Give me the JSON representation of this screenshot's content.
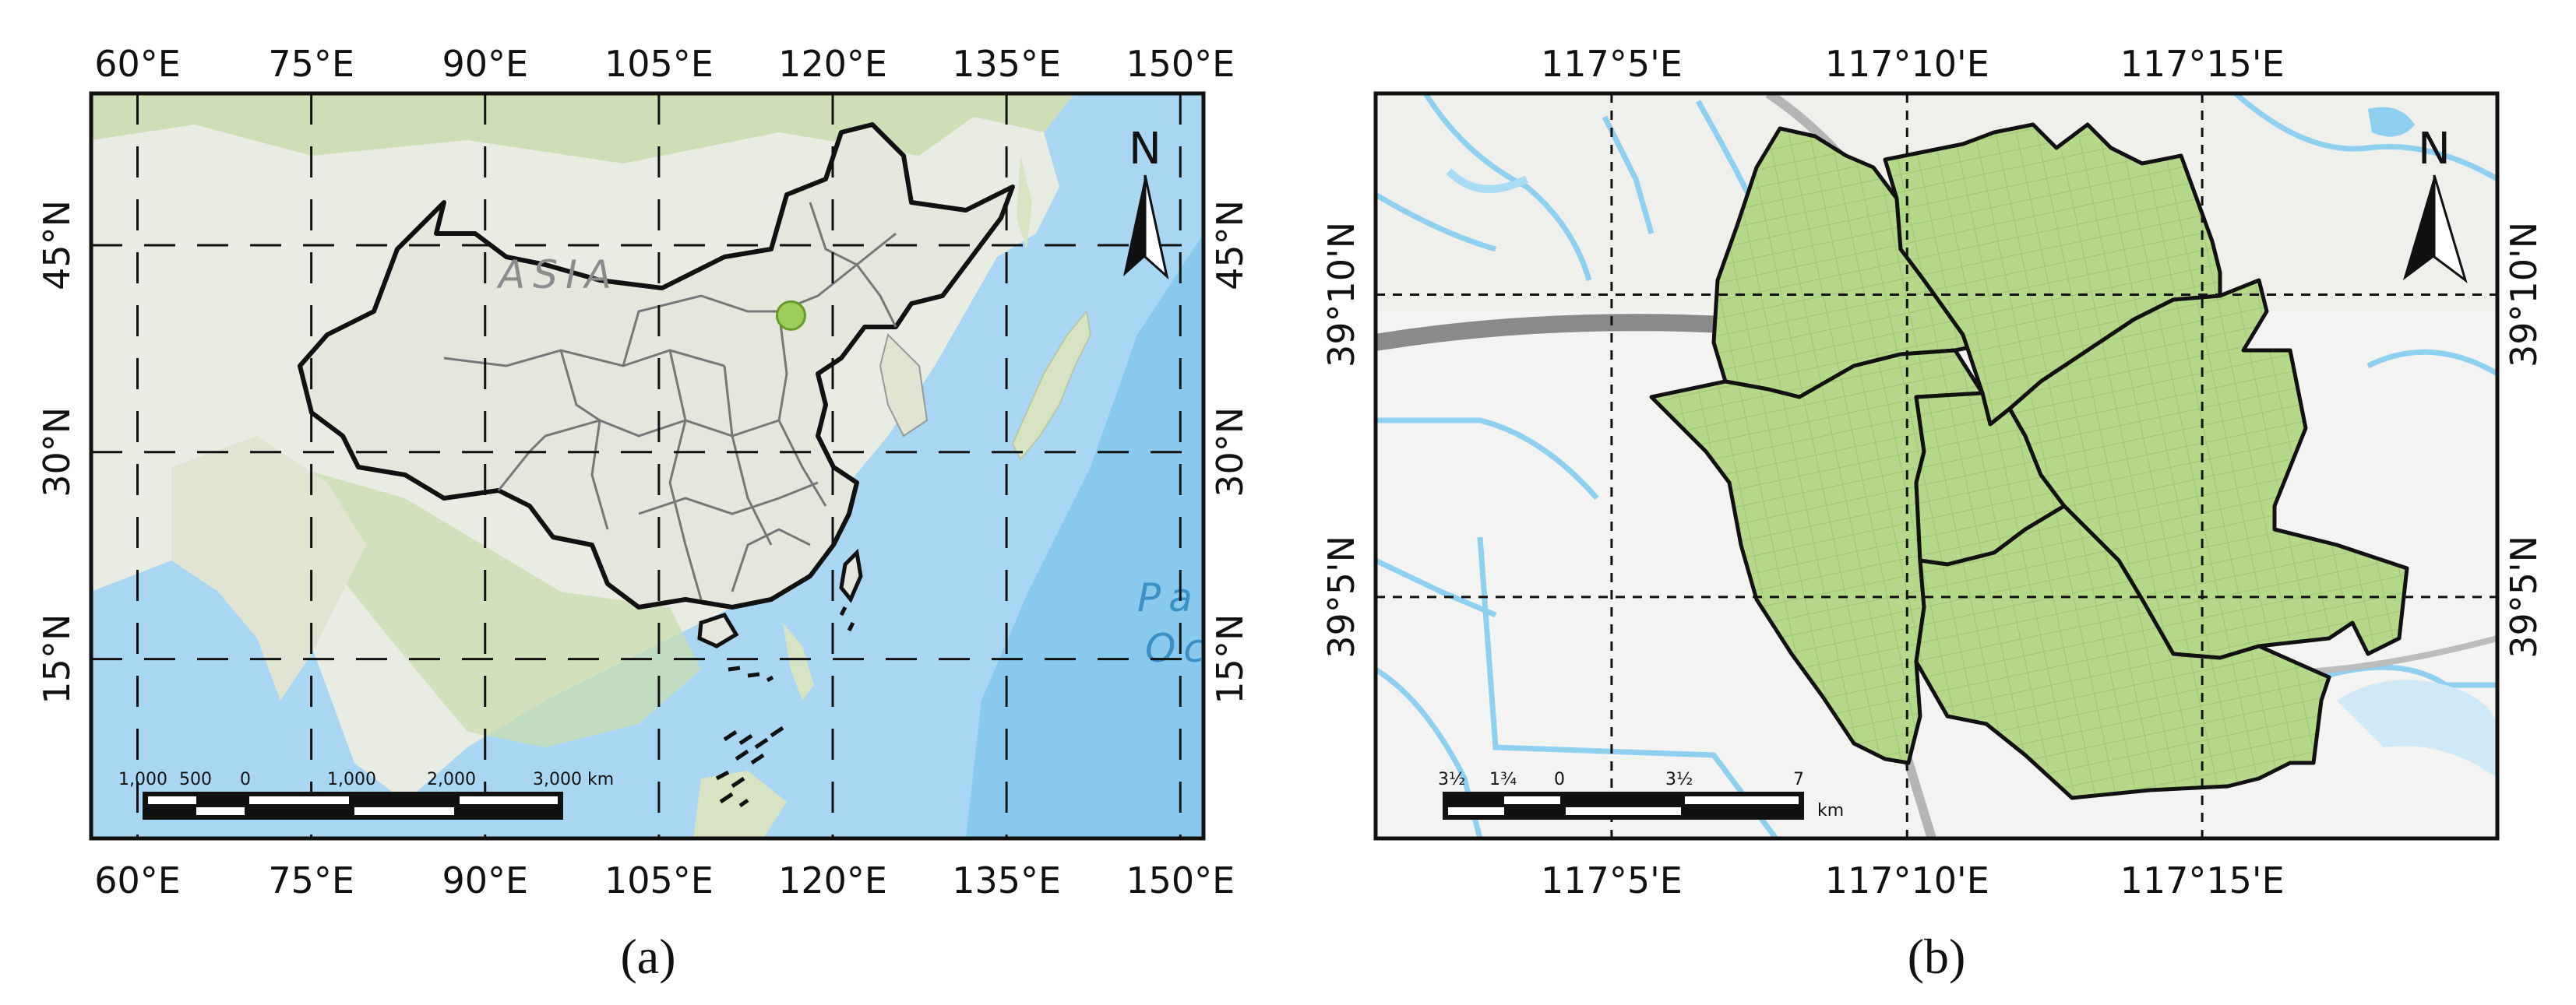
{
  "colors": {
    "background": "#ffffff",
    "land": "#e9ece2",
    "vegetation": "#c9ddb0",
    "ocean": "#a9d6f2",
    "ocean_deep": "#5ab0e6",
    "boundary": "#111111",
    "province": "#777777",
    "study_area_fill": "#b5d88a",
    "study_area_point": "#9ccc5a",
    "river": "#8fcff0",
    "road": "#8a8a8a"
  },
  "panel_a": {
    "caption": "(a)",
    "x_ticks": [
      "60°E",
      "75°E",
      "90°E",
      "105°E",
      "120°E",
      "135°E",
      "150°E"
    ],
    "y_ticks": [
      "45°N",
      "30°N",
      "15°N"
    ],
    "continent_label": "ASIA",
    "ocean_label_line1": "Pa",
    "ocean_label_line2": "Oc",
    "north_label": "N",
    "scale_bar": {
      "labels": [
        "1,000",
        "500",
        "0",
        "1,000",
        "2,000",
        "3,000 km"
      ]
    },
    "map": {
      "lon_min": 56,
      "lon_max": 152,
      "lat_min": 2,
      "lat_max": 56,
      "grid_lons": [
        60,
        75,
        90,
        105,
        120,
        135,
        150
      ],
      "grid_lats": [
        45,
        30,
        15
      ],
      "study_point": {
        "lon": 116.4,
        "lat": 39.9
      }
    }
  },
  "panel_b": {
    "caption": "(b)",
    "x_ticks": [
      "117°5'E",
      "117°10'E",
      "117°15'E"
    ],
    "y_ticks": [
      "39°10'N",
      "39°5'N"
    ],
    "north_label": "N",
    "scale_bar": {
      "labels": [
        "3½",
        "1¾",
        "0",
        "3½",
        "7"
      ],
      "unit": "km"
    },
    "map": {
      "lon_min": 117.0167,
      "lon_max": 117.3333,
      "lat_min": 39.0167,
      "lat_max": 39.2222,
      "grid_lons": [
        117.0833,
        117.1667,
        117.25
      ],
      "grid_lats": [
        39.1667,
        39.0833
      ]
    }
  }
}
